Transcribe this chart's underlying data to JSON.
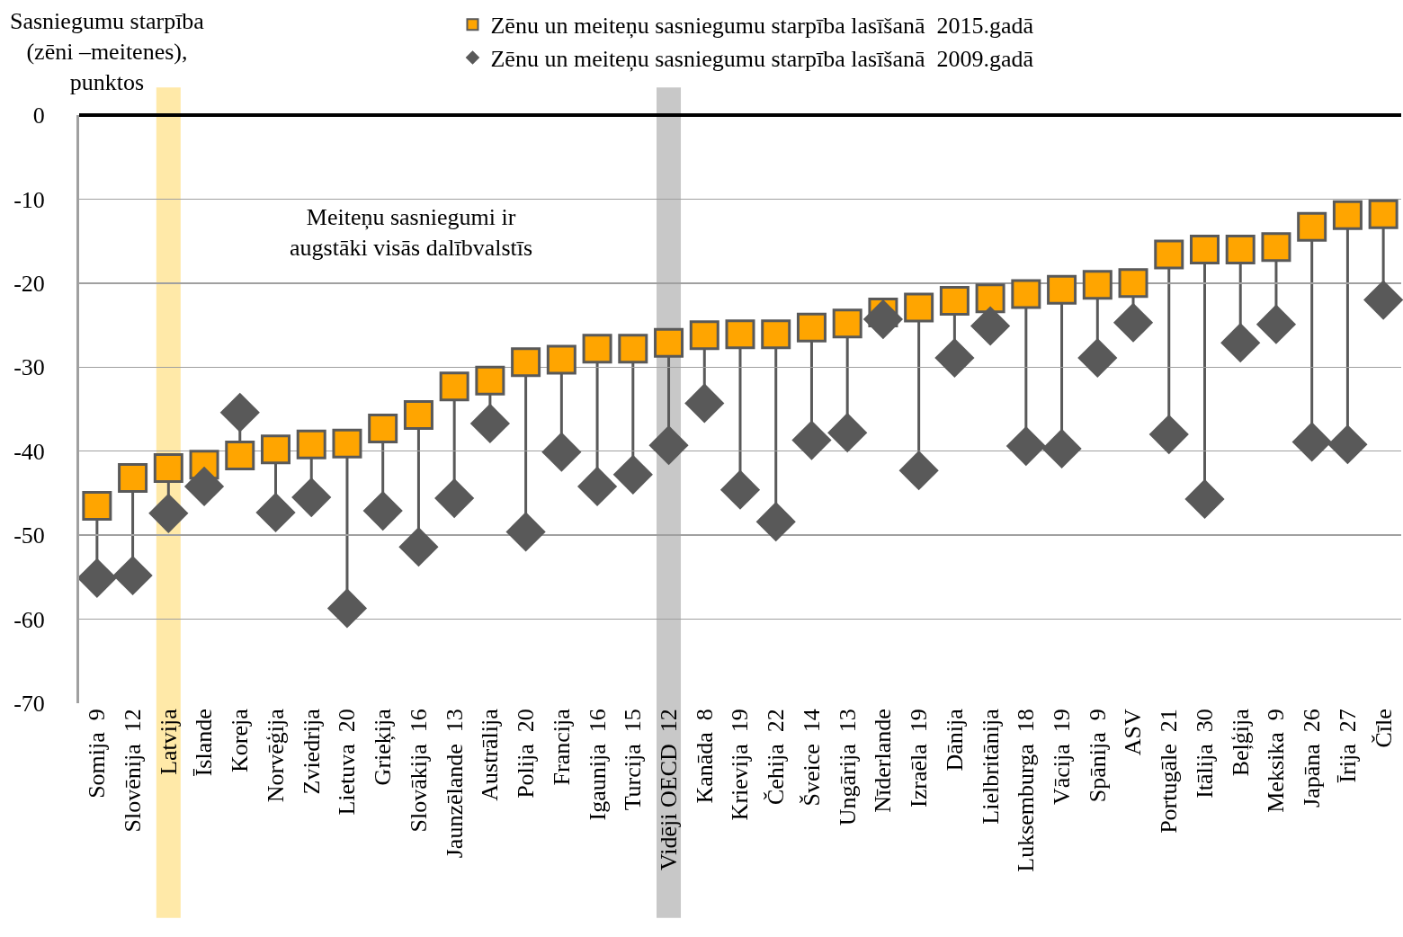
{
  "chart_data": {
    "type": "scatter",
    "ylabel": "Sasniegumu starpība (zēni –meitenes), punktos",
    "categories": [
      "Somija  9",
      "Slovēnija  12",
      "Latvija",
      "Īslande",
      "Koreja",
      "Norvēģija",
      "Zviedrija",
      "Lietuva  20",
      "Grieķija",
      "Slovākija  16",
      "Jaunzēlande  13",
      "Austrālija",
      "Polija  20",
      "Francija",
      "Igaunija  16",
      "Turcija  15",
      "Vidēji OECD  12",
      "Kanāda  8",
      "Krievija  19",
      "Čehija  22",
      "Šveice  14",
      "Ungārija  13",
      "Nīderlande",
      "Izraēla  19",
      "Dānija",
      "Lielbritānija",
      "Luksemburga  18",
      "Vācija  19",
      "Spānija  9",
      "ASV",
      "Portugāle  21",
      "Itālija  30",
      "Beļģija",
      "Meksika  9",
      "Japāna  26",
      "Īrija  27",
      "Čīle"
    ],
    "series": [
      {
        "name": "Zēnu un meiteņu sasniegumu starpība lasīšanā  2015.gadā",
        "color": "#ffa500",
        "marker": "square",
        "values": [
          -46.5,
          -43.2,
          -42.0,
          -41.6,
          -40.5,
          -39.8,
          -39.2,
          -39.1,
          -37.3,
          -35.7,
          -32.3,
          -31.6,
          -29.4,
          -29.1,
          -27.8,
          -27.8,
          -27.1,
          -26.2,
          -26.1,
          -26.1,
          -25.3,
          -24.8,
          -23.5,
          -22.9,
          -22.1,
          -21.8,
          -21.3,
          -20.8,
          -20.2,
          -20.0,
          -16.6,
          -16.0,
          -16.0,
          -15.7,
          -13.3,
          -11.9,
          -11.8
        ]
      },
      {
        "name": "Zēnu un meiteņu sasniegumu starpība lasīšanā  2009.gadā",
        "color": "#595959",
        "marker": "diamond",
        "values": [
          -55.1,
          -54.8,
          -47.4,
          -44.2,
          -35.4,
          -47.3,
          -45.5,
          -58.7,
          -47.1,
          -51.4,
          -45.6,
          -36.7,
          -49.6,
          -40.1,
          -44.2,
          -42.8,
          -39.3,
          -34.3,
          -44.6,
          -48.4,
          -38.7,
          -37.8,
          -24.3,
          -42.3,
          -28.9,
          -25.1,
          -39.4,
          -39.7,
          -28.9,
          -24.7,
          -38.0,
          -45.7,
          -27.1,
          -24.9,
          -38.9,
          -39.2,
          -22.0
        ]
      }
    ],
    "ylim": [
      -70,
      0
    ],
    "yticks": [
      0,
      -10,
      -20,
      -30,
      -40,
      -50,
      -60,
      -70
    ],
    "grid": "y",
    "legend": "top",
    "bands": [
      {
        "axis": "x",
        "from": "Latvija",
        "to": "Latvija",
        "color": "#ffe9a8"
      },
      {
        "axis": "x",
        "from": "Vidēji OECD  12",
        "to": "Vidēji OECD  12",
        "color": "#c8c8c8"
      }
    ],
    "annotations": [
      "Meiteņu sasniegumi ir augstāki visās dalībvalstīs"
    ]
  }
}
